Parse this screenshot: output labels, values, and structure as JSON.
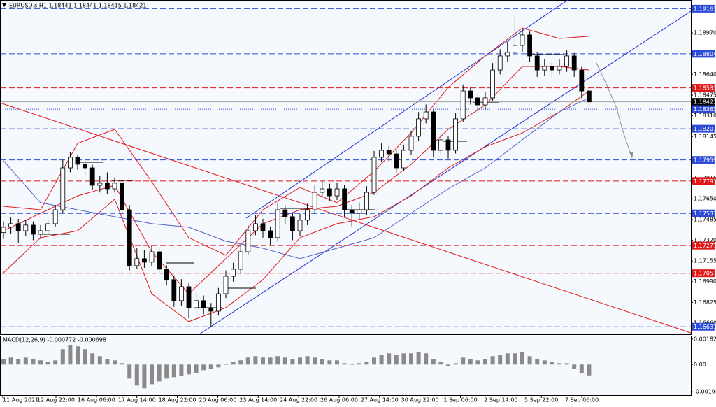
{
  "chart_data": {
    "type": "candlestick",
    "title": "EURUSD.s,H1  1.18441 1.18441 1.18415 1.18421",
    "open": [
      1.1738,
      1.17423,
      1.17451,
      1.17395,
      1.1744,
      1.17367,
      1.17395,
      1.17451,
      1.17562,
      1.17896,
      1.1798,
      1.17924,
      1.17896,
      1.17757,
      1.17774,
      1.17729,
      1.17774,
      1.17562,
      1.17117,
      1.17173,
      1.17145,
      1.17228,
      1.17089,
      1.17006,
      1.16839,
      1.1695,
      1.16783,
      1.16839,
      1.16783,
      1.16755,
      1.16894,
      1.17033,
      1.17089,
      1.17228,
      1.17395,
      1.17451,
      1.17395,
      1.1734,
      1.17562,
      1.17507,
      1.17395,
      1.17479,
      1.17562,
      1.17701,
      1.17729,
      1.17673,
      1.17729,
      1.17562,
      1.17534,
      1.17562,
      1.17701,
      1.1798,
      1.18035,
      1.18007,
      1.17896,
      1.18035,
      1.18147,
      1.18286,
      1.18341,
      1.18035,
      1.18119,
      1.18035,
      1.18286,
      1.18508,
      1.18453,
      1.18397,
      1.18453,
      1.18675,
      1.18787,
      1.18815,
      1.1887,
      1.18954,
      1.18787,
      1.18675,
      1.18703,
      1.18675,
      1.18703,
      1.18787,
      1.18675,
      1.18508
    ],
    "high": [
      1.1747,
      1.175,
      1.1749,
      1.1748,
      1.1747,
      1.1744,
      1.1748,
      1.176,
      1.1796,
      1.1802,
      1.18,
      1.1796,
      1.1792,
      1.1783,
      1.1786,
      1.1782,
      1.178,
      1.176,
      1.1726,
      1.1724,
      1.1728,
      1.1726,
      1.1712,
      1.1704,
      1.1701,
      1.1698,
      1.169,
      1.1688,
      1.1682,
      1.1694,
      1.1708,
      1.1714,
      1.1728,
      1.1744,
      1.1752,
      1.1749,
      1.1743,
      1.1762,
      1.176,
      1.1754,
      1.1753,
      1.1761,
      1.1776,
      1.1779,
      1.1777,
      1.1778,
      1.1776,
      1.176,
      1.1762,
      1.1775,
      1.1803,
      1.1809,
      1.1807,
      1.1804,
      1.1808,
      1.1819,
      1.1834,
      1.184,
      1.1836,
      1.1817,
      1.1815,
      1.1833,
      1.1856,
      1.1854,
      1.1848,
      1.185,
      1.1873,
      1.1884,
      1.189,
      1.191,
      1.19,
      1.1898,
      1.1882,
      1.1876,
      1.1874,
      1.1876,
      1.1883,
      1.1881,
      1.187,
      1.1853
    ],
    "low": [
      1.1733,
      1.1737,
      1.173,
      1.1735,
      1.1732,
      1.1733,
      1.1736,
      1.1743,
      1.1754,
      1.1786,
      1.1788,
      1.1784,
      1.1772,
      1.177,
      1.1769,
      1.177,
      1.1752,
      1.1708,
      1.1709,
      1.171,
      1.1711,
      1.1705,
      1.1696,
      1.1679,
      1.168,
      1.167,
      1.1674,
      1.1673,
      1.1663,
      1.1672,
      1.1686,
      1.1699,
      1.1705,
      1.172,
      1.1736,
      1.1734,
      1.1728,
      1.1731,
      1.1745,
      1.1732,
      1.1735,
      1.1744,
      1.1753,
      1.1766,
      1.1763,
      1.1764,
      1.175,
      1.1743,
      1.1748,
      1.1752,
      1.1768,
      1.1794,
      1.1795,
      1.1786,
      1.1787,
      1.18,
      1.1811,
      1.1825,
      1.1798,
      1.18,
      1.1797,
      1.1801,
      1.1826,
      1.184,
      1.1834,
      1.1836,
      1.1843,
      1.1864,
      1.1874,
      1.1878,
      1.1882,
      1.1874,
      1.1862,
      1.1863,
      1.1861,
      1.1864,
      1.1866,
      1.1862,
      1.1845,
      1.1838
    ],
    "close": [
      1.17423,
      1.17451,
      1.17395,
      1.1744,
      1.17367,
      1.17395,
      1.17451,
      1.17562,
      1.17896,
      1.1798,
      1.17924,
      1.17896,
      1.17757,
      1.17774,
      1.17729,
      1.17774,
      1.17562,
      1.17117,
      1.17173,
      1.17145,
      1.17228,
      1.17089,
      1.17006,
      1.16839,
      1.1695,
      1.16783,
      1.16839,
      1.16783,
      1.16755,
      1.16894,
      1.17033,
      1.17089,
      1.17228,
      1.17395,
      1.17451,
      1.17395,
      1.1734,
      1.17562,
      1.17507,
      1.17395,
      1.17479,
      1.17562,
      1.17701,
      1.17729,
      1.17673,
      1.17729,
      1.17562,
      1.17534,
      1.17562,
      1.17701,
      1.1798,
      1.18035,
      1.18007,
      1.17896,
      1.18035,
      1.18147,
      1.18286,
      1.18341,
      1.18035,
      1.18119,
      1.18035,
      1.18286,
      1.18508,
      1.18453,
      1.18397,
      1.18453,
      1.18675,
      1.18787,
      1.18815,
      1.1887,
      1.18954,
      1.18787,
      1.18675,
      1.18703,
      1.18675,
      1.18703,
      1.18787,
      1.18675,
      1.18508,
      1.18421
    ],
    "x_labels": [
      "11 Aug 2021",
      "12 Aug 22:00",
      "16 Aug 06:00",
      "17 Aug 14:00",
      "18 Aug 22:00",
      "20 Aug 06:00",
      "23 Aug 14:00",
      "24 Aug 22:00",
      "26 Aug 06:00",
      "27 Aug 14:00",
      "30 Aug 22:00",
      "1 Sep 06:00",
      "2 Sep 14:00",
      "5 Sep 22:00",
      "7 Sep 06:00"
    ],
    "ylim": [
      1.16571,
      1.19232
    ],
    "yticks": [
      {
        "value": 1.1897,
        "label": "1.18970"
      },
      {
        "value": 1.1864,
        "label": "1.18640"
      },
      1.18475,
      {
        "value": 1.1831,
        "label": "1.18310"
      },
      1.18145,
      1.17815,
      {
        "value": 1.1765,
        "label": "1.17650"
      },
      1.17485,
      {
        "value": 1.1732,
        "label": "1.17320"
      },
      1.17155,
      {
        "value": 1.1699,
        "label": "1.16990"
      },
      1.16825,
      {
        "value": 1.1666,
        "label": "1.16660"
      }
    ],
    "levels": [
      {
        "value": 1.19163,
        "color": "#2b4bd8",
        "style": "dash"
      },
      {
        "value": 1.18804,
        "color": "#2b4bd8",
        "style": "dash"
      },
      {
        "value": 1.18533,
        "color": "#e01818",
        "style": "dash"
      },
      {
        "value": 1.18421,
        "color": "#000000",
        "style": "solid"
      },
      {
        "value": 1.18363,
        "color": "#2b4bd8",
        "style": "dot"
      },
      {
        "value": 1.18207,
        "color": "#2b4bd8",
        "style": "dash"
      },
      {
        "value": 1.17959,
        "color": "#2b4bd8",
        "style": "dash"
      },
      {
        "value": 1.17791,
        "color": "#e01818",
        "style": "dash"
      },
      {
        "value": 1.17533,
        "color": "#2b4bd8",
        "style": "dash"
      },
      {
        "value": 1.17277,
        "color": "#e01818",
        "style": "dash"
      },
      {
        "value": 1.17057,
        "color": "#e01818",
        "style": "dash"
      },
      {
        "value": 1.16631,
        "color": "#2b4bd8",
        "style": "dash"
      }
    ],
    "overlay_x": [
      0,
      5,
      10,
      15,
      20,
      25,
      30,
      35,
      40,
      45,
      50,
      55,
      60,
      65,
      70,
      75,
      79
    ],
    "overlays": [
      {
        "color": "#e01818",
        "values": [
          1.1759,
          1.17562,
          1.18091,
          1.18202,
          1.17785,
          1.1734,
          1.172,
          1.17562,
          1.1774,
          1.17618,
          1.17868,
          1.18174,
          1.18536,
          1.18787,
          1.19009,
          1.18926,
          1.18943
        ]
      },
      {
        "color": "#e01818",
        "values": [
          1.17395,
          1.17534,
          1.17673,
          1.17757,
          1.17228,
          1.16894,
          1.17173,
          1.17451,
          1.17562,
          1.1759,
          1.17701,
          1.17924,
          1.18202,
          1.18397,
          1.18703,
          1.18703,
          1.18675
        ]
      },
      {
        "color": "#e01818",
        "values": [
          1.17061,
          1.1734,
          1.17395,
          1.17646,
          1.16894,
          1.16672,
          1.16783,
          1.17006,
          1.1734,
          1.17451,
          1.17507,
          1.17673,
          1.17896,
          1.18063,
          1.18174,
          1.18341,
          1.18508
        ]
      },
      {
        "color": "#5060c8",
        "values": [
          1.17952,
          1.17618,
          1.17562,
          1.17507,
          1.17451,
          1.17423,
          1.17312,
          1.17256,
          1.17173,
          1.17256,
          1.1734,
          1.17534,
          1.17729,
          1.17896,
          1.18119,
          1.18341,
          1.18453
        ]
      }
    ],
    "macd": {
      "label": "MACD(12,26,9) -0.000772 -0.000698",
      "color": "#8a8a8a",
      "ylim": [
        -0.00218,
        0.00201
      ],
      "yticks": [
        0.001822,
        {
          "value": 0,
          "label": "0.00"
        },
        -0.00194
      ],
      "values": [
        0.0004,
        0.0005,
        0.0004,
        0.0005,
        0.0004,
        0.0003,
        0.0002,
        0.0003,
        0.0011,
        0.0014,
        0.0013,
        0.0011,
        0.0008,
        0.0006,
        0.0004,
        0.0003,
        0.0001,
        -0.001,
        -0.0015,
        -0.0017,
        -0.0014,
        -0.0012,
        -0.001,
        -0.0009,
        -0.0008,
        -0.0007,
        -0.0006,
        -0.0004,
        -0.0003,
        -0.0002,
        0.0,
        0.0002,
        0.0003,
        0.0005,
        0.0006,
        0.0005,
        0.0005,
        0.0006,
        0.0005,
        0.0004,
        0.0005,
        0.0006,
        0.0005,
        0.0004,
        0.0003,
        0.0003,
        0.0001,
        0.0,
        0.0001,
        0.0002,
        0.0005,
        0.0007,
        0.0008,
        0.0007,
        0.0008,
        0.0008,
        0.0009,
        0.0008,
        0.0004,
        0.0002,
        -0.0001,
        0.0001,
        0.0005,
        0.0004,
        0.0003,
        0.0004,
        0.0006,
        0.0007,
        0.0008,
        0.0008,
        0.0009,
        0.0006,
        0.0004,
        0.0003,
        0.0002,
        0.0001,
        0.0001,
        -0.0003,
        -0.0006,
        -0.000772
      ]
    }
  }
}
